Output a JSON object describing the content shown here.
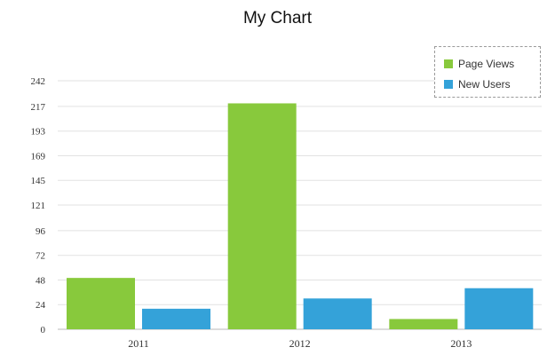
{
  "chart_data": {
    "type": "bar",
    "title": "My Chart",
    "xlabel": "",
    "ylabel": "",
    "categories": [
      "2011",
      "2012",
      "2013"
    ],
    "series": [
      {
        "name": "Page Views",
        "color": "#88c93c",
        "values": [
          50,
          220,
          10
        ]
      },
      {
        "name": "New Users",
        "color": "#34a2d9",
        "values": [
          20,
          30,
          40
        ]
      }
    ],
    "ylim": [
      0,
      242
    ],
    "yticks": [
      "0",
      "24",
      "48",
      "72",
      "96",
      "121",
      "145",
      "169",
      "193",
      "217",
      "242"
    ],
    "grid": true,
    "legend_position": "top-right"
  }
}
